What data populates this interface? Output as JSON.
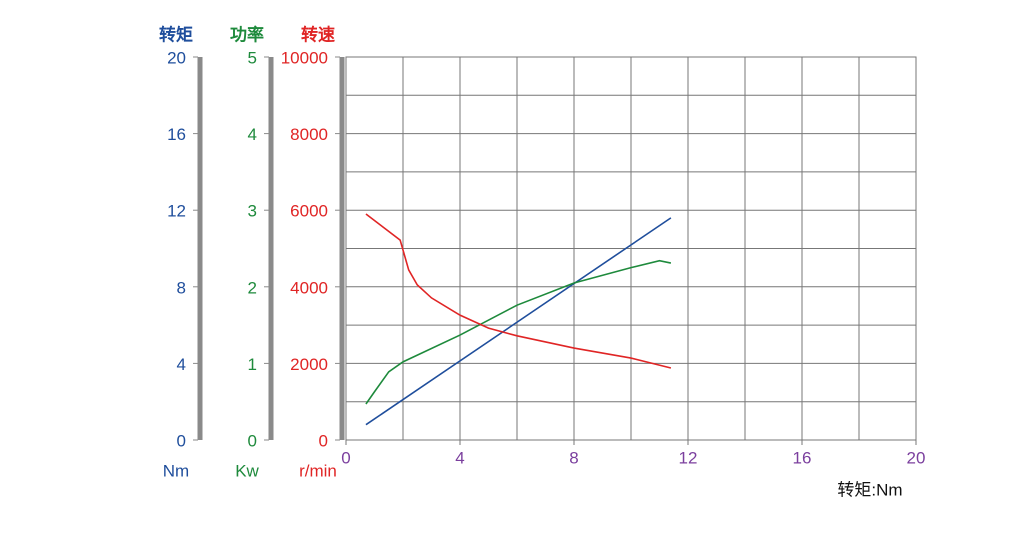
{
  "chart_data": {
    "type": "line",
    "x_label": "转矩:Nm",
    "xlim": [
      0,
      20
    ],
    "xticks": [
      0,
      4,
      8,
      12,
      16,
      20
    ],
    "xgrid": [
      0,
      2,
      4,
      6,
      8,
      10,
      12,
      14,
      16,
      18,
      20
    ],
    "x_tick_color": "#7b3f9e",
    "axes": [
      {
        "title": "转矩",
        "unit": "Nm",
        "color": "#1f4e9c",
        "lim": [
          0,
          20
        ],
        "ticks": [
          0,
          4,
          8,
          12,
          16,
          20
        ]
      },
      {
        "title": "功率",
        "unit": "Kw",
        "color": "#1e8a3c",
        "lim": [
          0,
          5
        ],
        "ticks": [
          0,
          1,
          2,
          3,
          4,
          5
        ]
      },
      {
        "title": "转速",
        "unit": "r/min",
        "color": "#e02525",
        "lim": [
          0,
          10000
        ],
        "ticks": [
          0,
          2000,
          4000,
          6000,
          8000,
          10000
        ],
        "grid": [
          0,
          1000,
          2000,
          3000,
          4000,
          5000,
          6000,
          7000,
          8000,
          9000,
          10000
        ]
      }
    ],
    "series": [
      {
        "name": "转矩",
        "axis": 0,
        "color": "#1f4e9c",
        "x": [
          0.7,
          11.4
        ],
        "values": [
          0.8,
          11.6
        ]
      },
      {
        "name": "功率",
        "axis": 1,
        "color": "#1e8a3c",
        "x": [
          0.7,
          1,
          1.5,
          2,
          4,
          6,
          8,
          10,
          11,
          11.4
        ],
        "values": [
          0.47,
          0.63,
          0.89,
          1.02,
          1.37,
          1.76,
          2.05,
          2.25,
          2.34,
          2.31
        ]
      },
      {
        "name": "转速",
        "axis": 2,
        "color": "#e02525",
        "x": [
          0.7,
          1.9,
          2.2,
          2.5,
          3,
          4,
          5,
          6,
          8,
          10,
          11.4
        ],
        "values": [
          5900,
          5220,
          4440,
          4050,
          3710,
          3260,
          2920,
          2720,
          2400,
          2140,
          1880
        ]
      }
    ]
  }
}
